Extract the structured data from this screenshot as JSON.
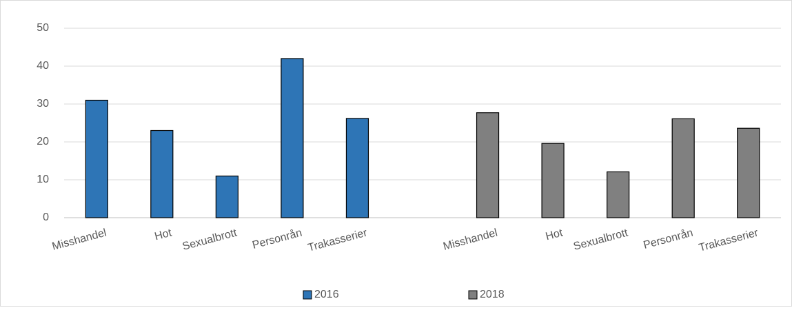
{
  "chart_data": {
    "type": "bar",
    "categories": [
      "Misshandel",
      "Hot",
      "Sexualbrott",
      "Personrån",
      "Trakasserier",
      null,
      "Misshandel",
      "Hot",
      "Sexualbrott",
      "Personrån",
      "Trakasserier"
    ],
    "series": [
      {
        "name": "2016",
        "color": "#2e75b6",
        "values": [
          31,
          23,
          11,
          42,
          26.2,
          null,
          null,
          null,
          null,
          null,
          null
        ]
      },
      {
        "name": "2018",
        "color": "#808080",
        "values": [
          null,
          null,
          null,
          null,
          null,
          null,
          27.7,
          19.6,
          12.1,
          26.1,
          23.6
        ]
      }
    ],
    "ylim": [
      0,
      50
    ],
    "yticks": [
      0,
      10,
      20,
      30,
      40,
      50
    ],
    "grid": true,
    "legend": "bottom"
  }
}
